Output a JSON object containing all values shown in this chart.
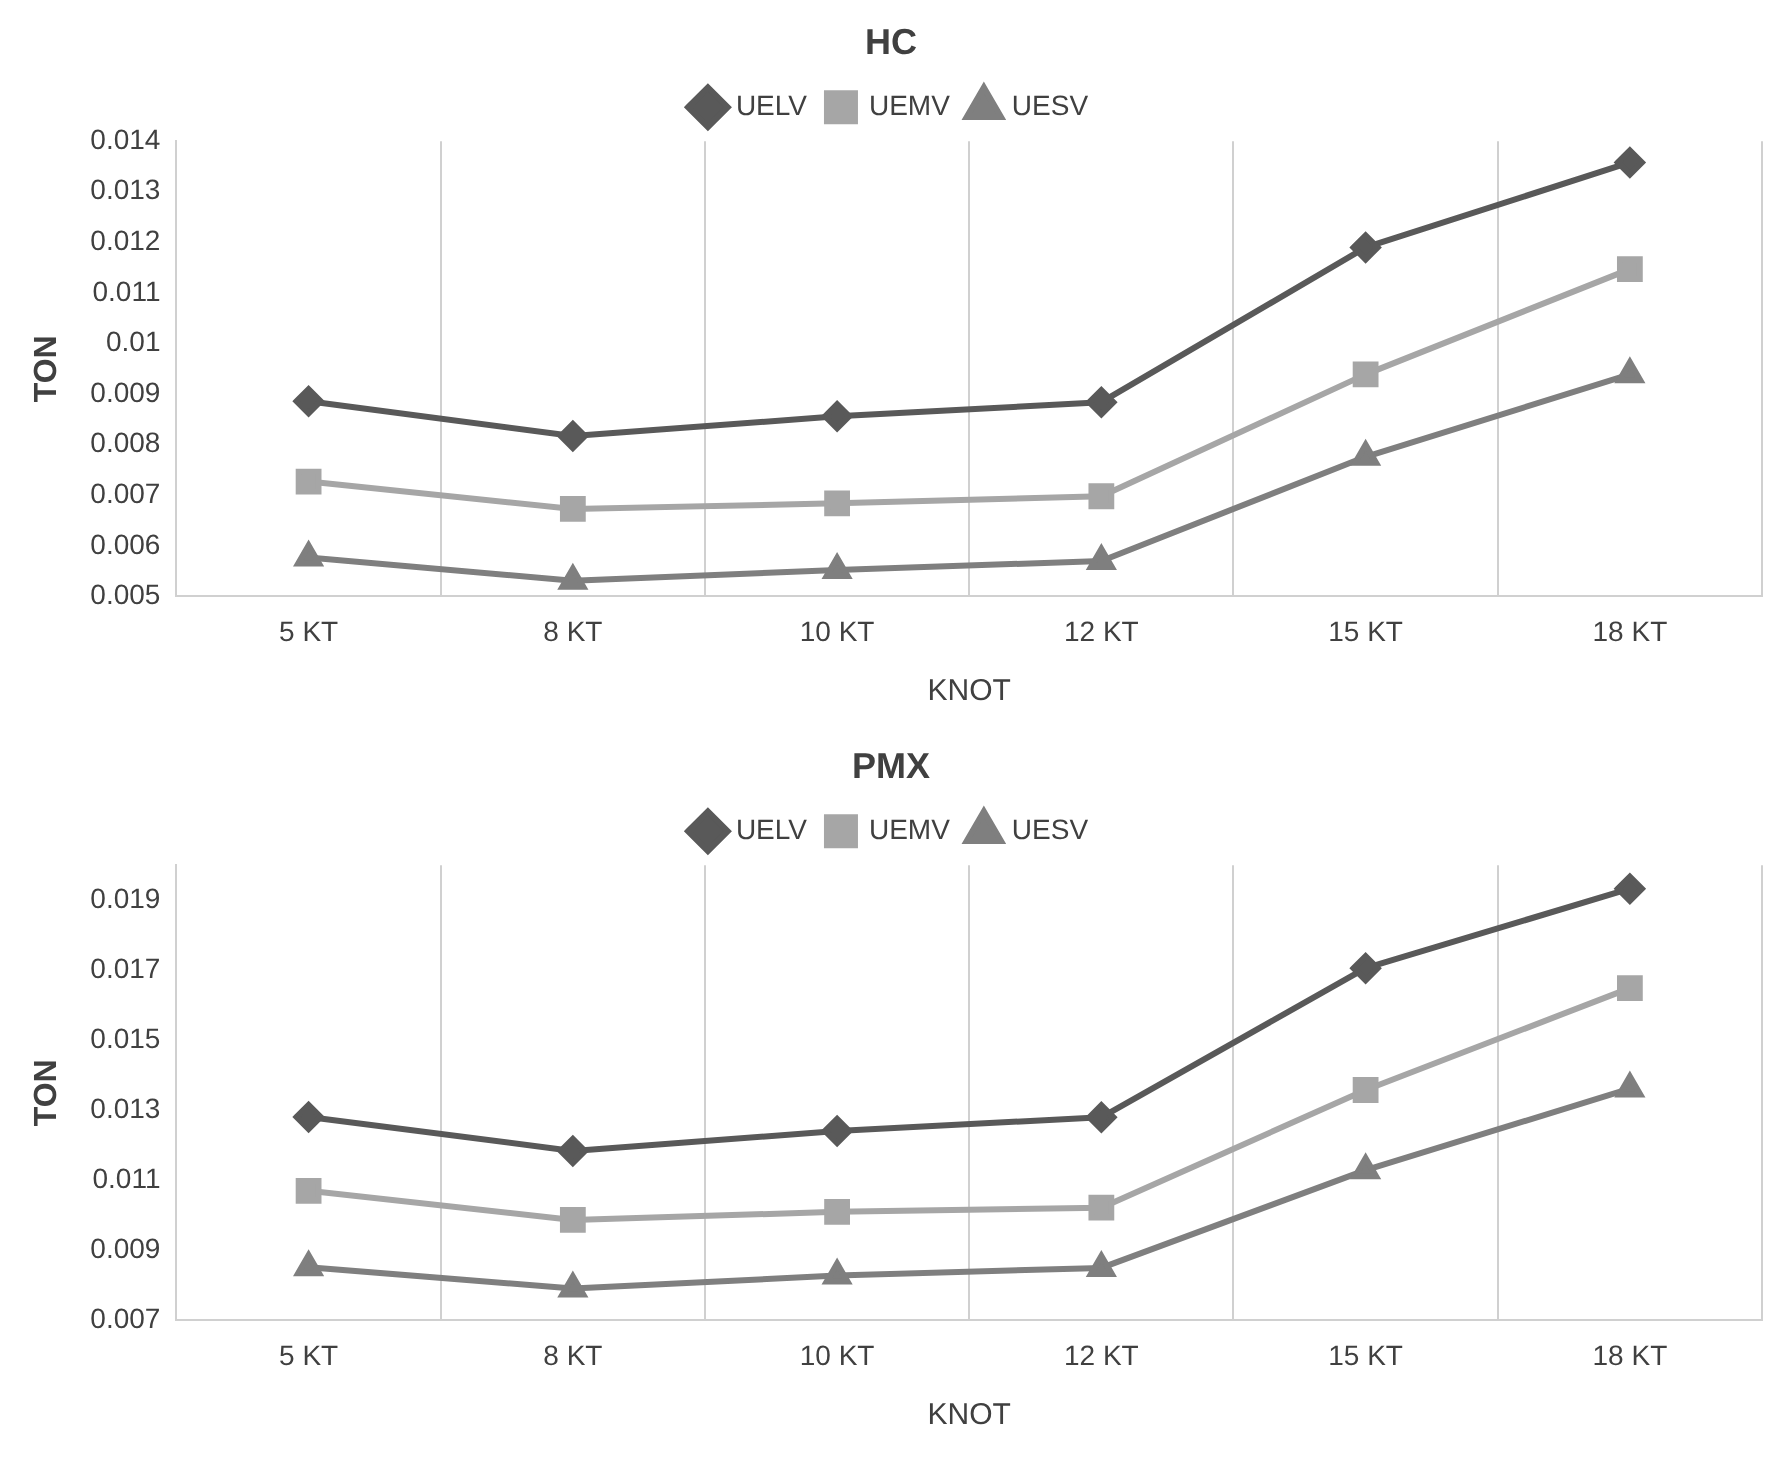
{
  "chart_data": [
    {
      "type": "line",
      "title": "HC",
      "xlabel": "KNOT",
      "ylabel": "TON",
      "categories": [
        "5 KT",
        "8 KT",
        "10 KT",
        "12 KT",
        "15 KT",
        "18 KT"
      ],
      "series": [
        {
          "name": "UELV",
          "color": "#595959",
          "marker": "diamond",
          "values": [
            0.00886,
            0.00817,
            0.00856,
            0.00884,
            0.0119,
            0.01358
          ]
        },
        {
          "name": "UEMV",
          "color": "#a6a6a6",
          "marker": "square",
          "values": [
            0.00727,
            0.00673,
            0.00684,
            0.00698,
            0.00939,
            0.01147
          ]
        },
        {
          "name": "UESV",
          "color": "#7f7f7f",
          "marker": "triangle",
          "values": [
            0.00577,
            0.00531,
            0.00552,
            0.0057,
            0.00776,
            0.00939
          ]
        }
      ],
      "ylim": [
        0.005,
        0.014
      ],
      "yticks": [
        0.005,
        0.006,
        0.007,
        0.008,
        0.009,
        0.01,
        0.011,
        0.012,
        0.013,
        0.014
      ],
      "grid": "x",
      "legend": "top"
    },
    {
      "type": "line",
      "title": "PMX",
      "xlabel": "KNOT",
      "ylabel": "TON",
      "categories": [
        "5 KT",
        "8 KT",
        "10 KT",
        "12 KT",
        "15 KT",
        "18 KT"
      ],
      "series": [
        {
          "name": "UELV",
          "color": "#595959",
          "marker": "diamond",
          "values": [
            0.01281,
            0.01184,
            0.01241,
            0.0128,
            0.01706,
            0.01933
          ]
        },
        {
          "name": "UEMV",
          "color": "#a6a6a6",
          "marker": "square",
          "values": [
            0.0107,
            0.00987,
            0.0101,
            0.01022,
            0.01358,
            0.01649
          ]
        },
        {
          "name": "UESV",
          "color": "#7f7f7f",
          "marker": "triangle",
          "values": [
            0.00852,
            0.00791,
            0.00828,
            0.0085,
            0.01129,
            0.01362
          ]
        }
      ],
      "ylim": [
        0.007,
        0.02
      ],
      "yticks": [
        0.007,
        0.009,
        0.011,
        0.013,
        0.015,
        0.017,
        0.019
      ],
      "grid": "x",
      "legend": "top"
    }
  ]
}
